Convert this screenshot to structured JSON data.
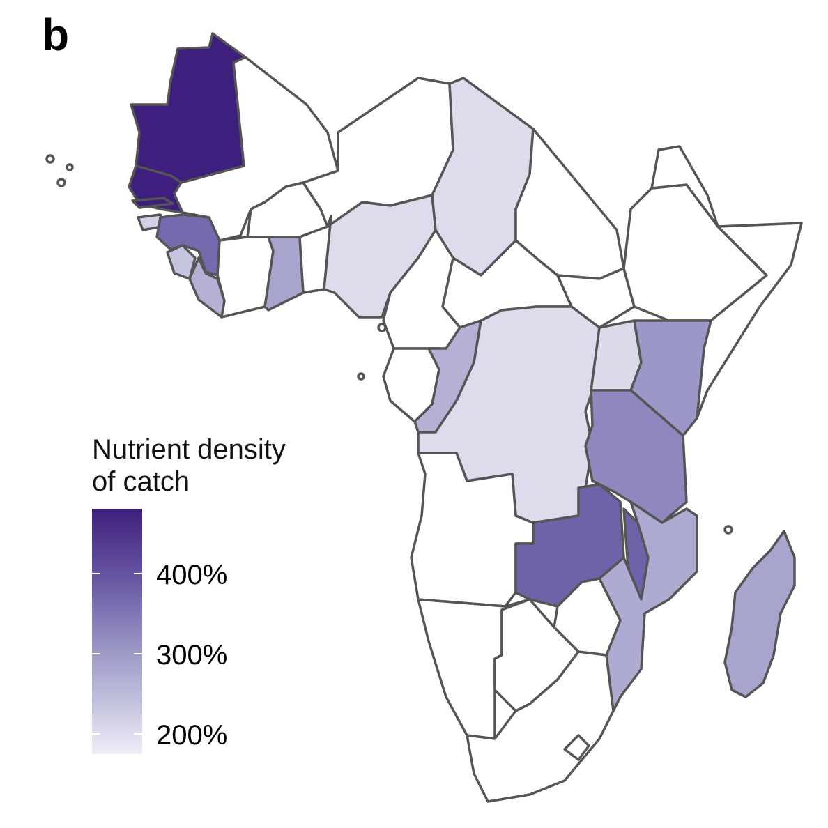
{
  "panel_label": "b",
  "legend": {
    "title_line1": "Nutrient density",
    "title_line2": "of catch",
    "ticks": [
      "400%",
      "300%",
      "200%"
    ]
  },
  "colors": {
    "no_data": "#ffffff",
    "border": "#555555",
    "scale_low": "#efeef6",
    "scale_high": "#3f1f7d"
  },
  "countries": [
    {
      "name": "Mauritania",
      "value": 480
    },
    {
      "name": "Senegal",
      "value": 480
    },
    {
      "name": "Gambia",
      "value": 480
    },
    {
      "name": "Guinea-Bissau",
      "value": 230
    },
    {
      "name": "Guinea",
      "value": 380
    },
    {
      "name": "Sierra Leone",
      "value": 250
    },
    {
      "name": "Liberia",
      "value": 280
    },
    {
      "name": "Ghana",
      "value": 300
    },
    {
      "name": "Nigeria",
      "value": 210
    },
    {
      "name": "Chad",
      "value": 210
    },
    {
      "name": "Congo",
      "value": 280
    },
    {
      "name": "DR Congo",
      "value": 210
    },
    {
      "name": "Uganda",
      "value": 215
    },
    {
      "name": "Kenya",
      "value": 320
    },
    {
      "name": "Tanzania",
      "value": 340
    },
    {
      "name": "Zambia",
      "value": 390
    },
    {
      "name": "Malawi",
      "value": 390
    },
    {
      "name": "Mozambique",
      "value": 290
    },
    {
      "name": "Madagascar",
      "value": 300
    }
  ]
}
